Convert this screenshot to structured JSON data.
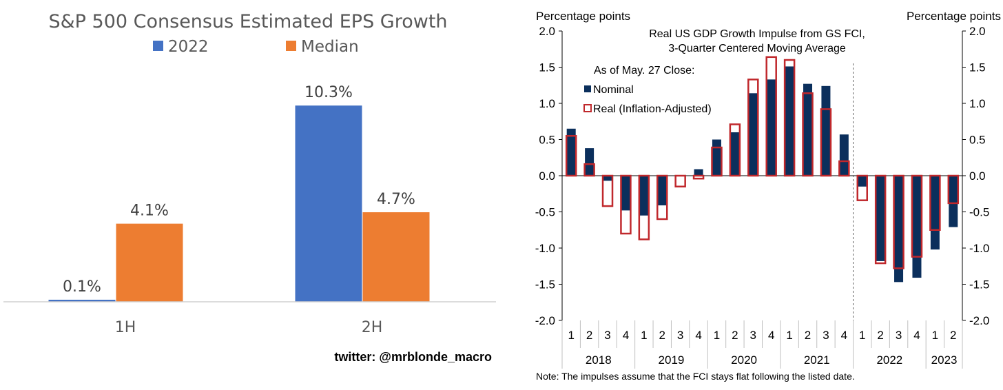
{
  "chart_data": [
    {
      "type": "bar",
      "title": "S&P 500 Consensus Estimated EPS Growth",
      "categories": [
        "1H",
        "2H"
      ],
      "series": [
        {
          "name": "2022",
          "values": [
            0.1,
            10.3
          ],
          "labels": [
            "0.1%",
            "10.3%"
          ],
          "color": "#4472c4"
        },
        {
          "name": "Median",
          "values": [
            4.1,
            4.7
          ],
          "labels": [
            "4.1%",
            "4.7%"
          ],
          "color": "#ed7d31"
        }
      ],
      "ylim": [
        0,
        11.5
      ],
      "grid": false,
      "legend": "top",
      "credit": "twitter: @mrblonde_macro"
    },
    {
      "type": "bar",
      "title": "Real US GDP Growth Impulse from GS FCI,",
      "subtitle": "3-Quarter Centered Moving Average",
      "ylabel_left": "Percentage points",
      "ylabel_right": "Percentage points",
      "ylim": [
        -2.0,
        2.0
      ],
      "yticks": [
        "2.0",
        "1.5",
        "1.0",
        "0.5",
        "0.0",
        "-0.5",
        "-1.0",
        "-1.5",
        "-2.0"
      ],
      "quarters": [
        "1",
        "2",
        "3",
        "4",
        "1",
        "2",
        "3",
        "4",
        "1",
        "2",
        "3",
        "4",
        "1",
        "2",
        "3",
        "4",
        "1",
        "2",
        "3",
        "4",
        "1",
        "2"
      ],
      "years": [
        {
          "label": "2018",
          "count": 4
        },
        {
          "label": "2019",
          "count": 4
        },
        {
          "label": "2020",
          "count": 4
        },
        {
          "label": "2021",
          "count": 4
        },
        {
          "label": "2022",
          "count": 4
        },
        {
          "label": "2023",
          "count": 2
        }
      ],
      "legend_heading": "As of May. 27 Close:",
      "series": [
        {
          "name": "Nominal",
          "color": "#0b2f5c",
          "values": [
            0.65,
            0.38,
            -0.07,
            -0.48,
            -0.55,
            -0.41,
            0.0,
            0.09,
            0.5,
            0.6,
            1.14,
            1.33,
            1.51,
            1.27,
            1.24,
            0.57,
            -0.15,
            -1.18,
            -1.47,
            -1.41,
            -1.02,
            -0.71
          ]
        },
        {
          "name": "Real (Inflation-Adjusted)",
          "color": "#c0282c",
          "values": [
            0.55,
            0.16,
            -0.42,
            -0.8,
            -0.88,
            -0.6,
            -0.15,
            -0.04,
            0.39,
            0.71,
            1.33,
            1.64,
            1.6,
            1.14,
            0.92,
            0.2,
            -0.34,
            -1.21,
            -1.28,
            -1.12,
            -0.75,
            -0.38
          ]
        }
      ],
      "forecast_divider_after_index": 16,
      "note": "Note: The impulses assume that the FCI stays flat following the listed date.",
      "grid": false,
      "legend": "top-left"
    }
  ]
}
